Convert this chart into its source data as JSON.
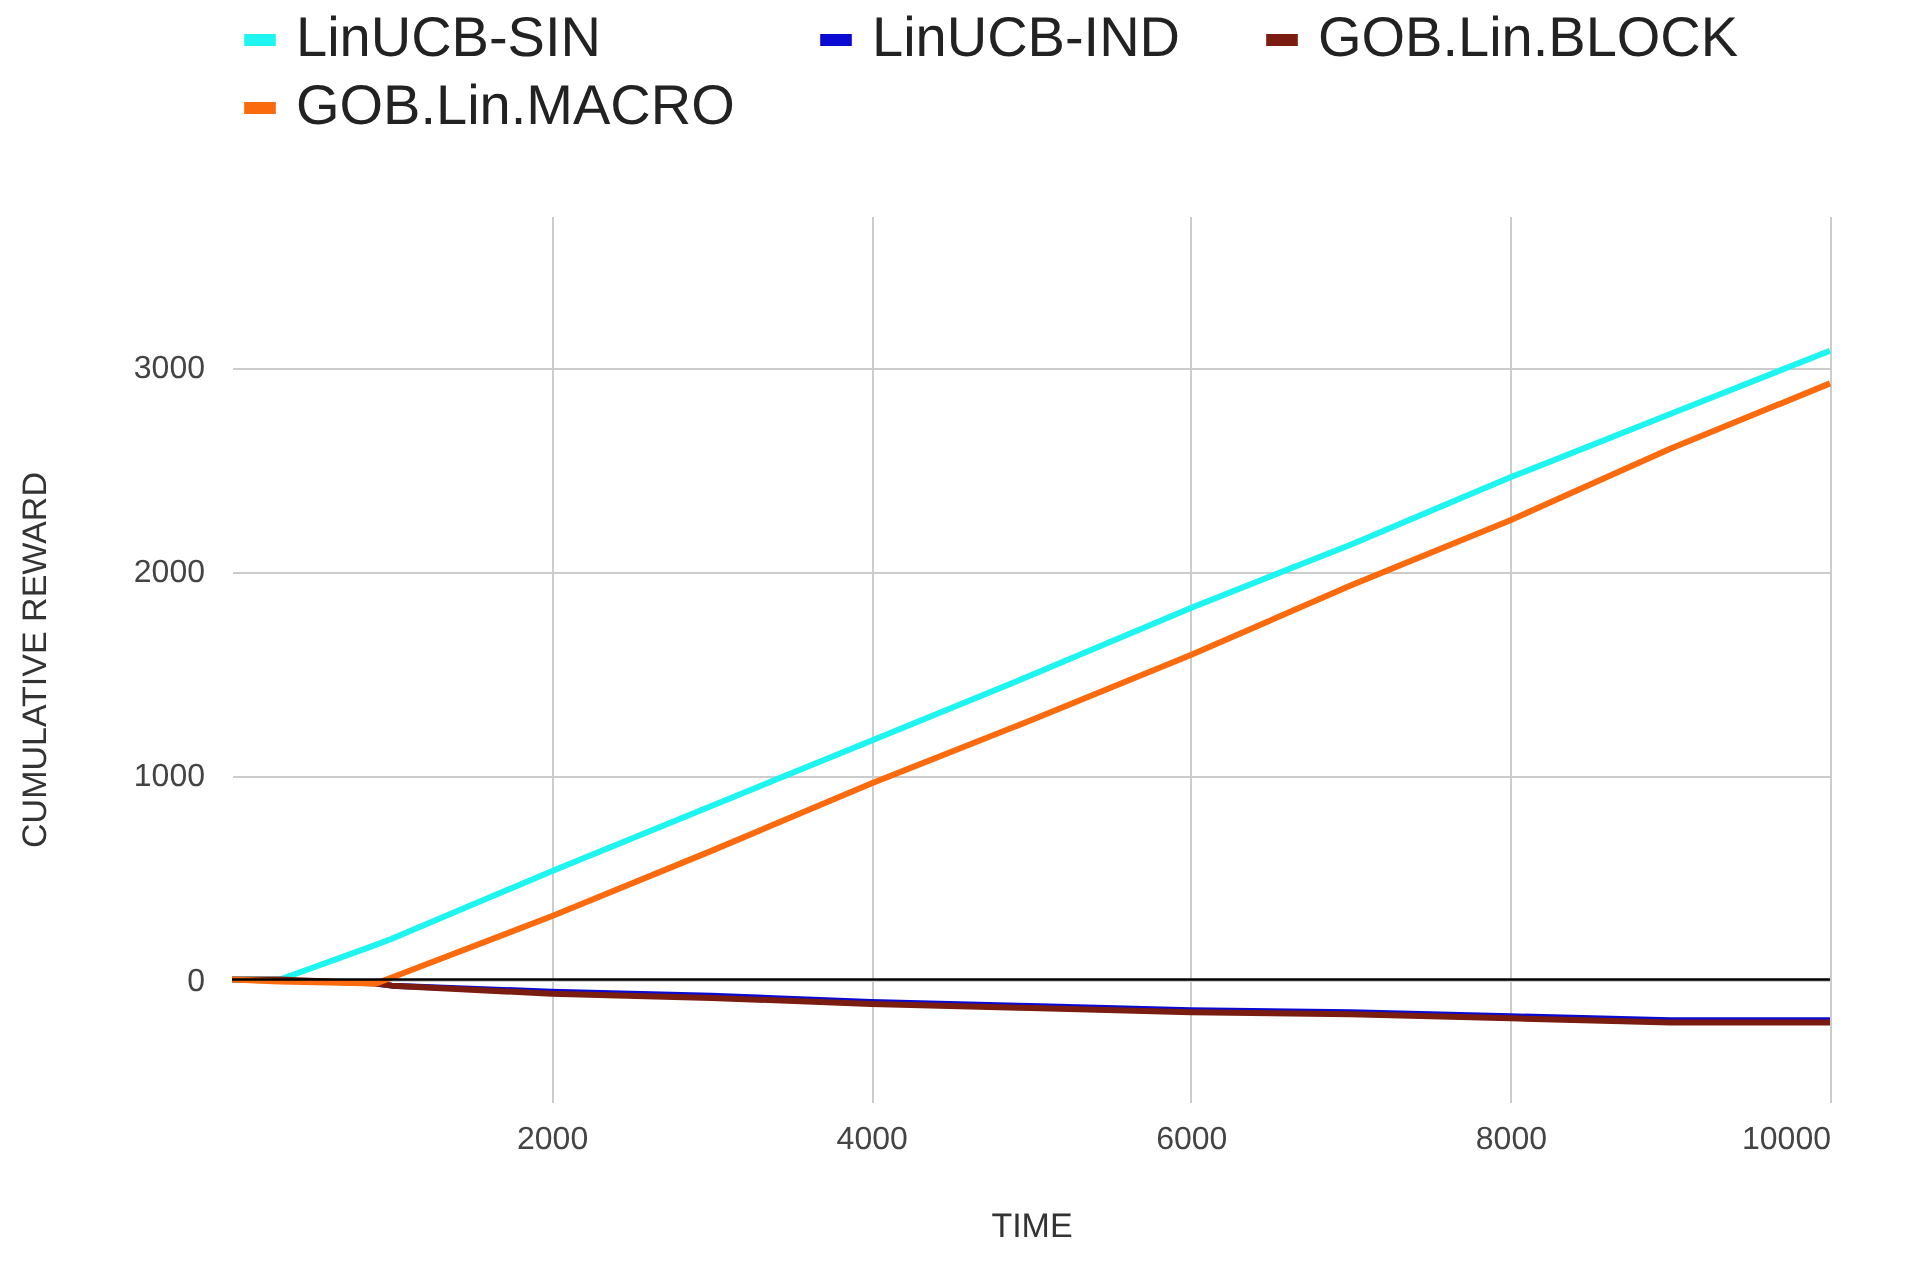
{
  "chart_data": {
    "type": "line",
    "xlabel": "TIME",
    "ylabel": "CUMULATIVE REWARD",
    "x": [
      0,
      300,
      900,
      1000,
      2000,
      3000,
      4000,
      5000,
      6000,
      7000,
      8000,
      9000,
      10000
    ],
    "series": [
      {
        "name": "LinUCB-SIN",
        "color": "#1ff5f0",
        "values": [
          0,
          0,
          170,
          200,
          530,
          850,
          1170,
          1490,
          1820,
          2130,
          2460,
          2770,
          3080
        ]
      },
      {
        "name": "LinUCB-IND",
        "color": "#0a0ad2",
        "values": [
          null,
          null,
          -20,
          -30,
          -60,
          -80,
          -110,
          -130,
          -150,
          -160,
          -180,
          -200,
          -200
        ]
      },
      {
        "name": "GOB.Lin.BLOCK",
        "color": "#7a1d10",
        "values": [
          0,
          0,
          -20,
          -30,
          -70,
          -90,
          -120,
          -140,
          -160,
          -170,
          -190,
          -210,
          -210
        ]
      },
      {
        "name": "GOB.Lin.MACRO",
        "color": "#fb6a0c",
        "values": [
          0,
          -10,
          -20,
          10,
          310,
          630,
          960,
          1270,
          1590,
          1930,
          2250,
          2600,
          2920
        ]
      }
    ],
    "xlim": [
      0,
      10000
    ],
    "xticks": [
      2000,
      4000,
      6000,
      8000,
      10000
    ],
    "ylim": [
      -600,
      3740
    ],
    "yticks": [
      0,
      1000,
      2000,
      3000
    ],
    "ref_lines": [
      {
        "axis": "y",
        "value": 0,
        "color": "#000000"
      }
    ],
    "grid": true,
    "legend": "top",
    "marker": "none",
    "line_style": "solid"
  }
}
